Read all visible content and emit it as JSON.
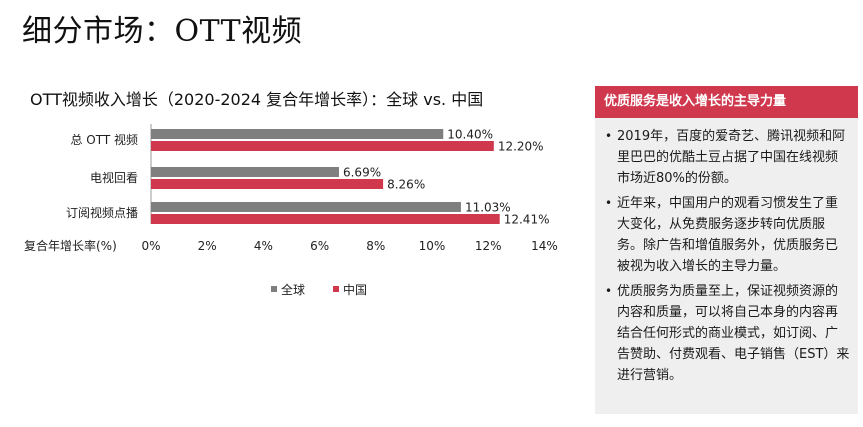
{
  "page": {
    "title": "细分市场：OTT视频"
  },
  "chart_data": {
    "type": "bar",
    "orientation": "horizontal",
    "title": "OTT视频收入增长（2020-2024 复合年增长率）：全球 vs. 中国",
    "xlabel": "复合年增长率(%)",
    "categories": [
      "总 OTT 视频",
      "电视回看",
      "订阅视频点播"
    ],
    "series": [
      {
        "name": "全球",
        "values": [
          10.4,
          6.69,
          11.03
        ],
        "labels": [
          "10.40%",
          "6.69%",
          "11.03%"
        ],
        "color": "#7f7f7f"
      },
      {
        "name": "中国",
        "values": [
          12.2,
          8.26,
          12.41
        ],
        "labels": [
          "12.20%",
          "8.26%",
          "12.41%"
        ],
        "color": "#d0384d"
      }
    ],
    "xlim": [
      0,
      14
    ],
    "xticks": [
      "0%",
      "2%",
      "4%",
      "6%",
      "8%",
      "10%",
      "12%",
      "14%"
    ],
    "grid": false,
    "legend": "bottom"
  },
  "panel": {
    "header": "优质服务是收入增长的主导力量",
    "bullet_symbol": "•",
    "bullets": [
      "2019年，百度的爱奇艺、腾讯视频和阿里巴巴的优酷土豆占据了中国在线视频市场近80%的份额。",
      "近年来，中国用户的观看习惯发生了重大变化，从免费服务逐步转向优质服务。除广告和增值服务外，优质服务已被视为收入增长的主导力量。",
      "优质服务为质量至上，保证视频资源的内容和质量，可以将自己本身的内容再结合任何形式的商业模式，如订阅、广告赞助、付费观看、电子销售（EST）来进行营销。"
    ]
  }
}
